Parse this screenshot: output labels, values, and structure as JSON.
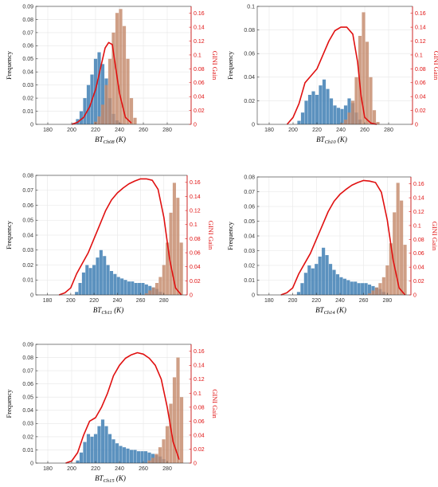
{
  "colors": {
    "blue": "#4a86b8",
    "orange": "#c58a6b",
    "overlap": "#7a6258",
    "gini": "#e01010",
    "grid": "#e6e6e6",
    "axis": "#333333"
  },
  "chart_data": [
    {
      "type": "bar",
      "ylabel": "Frequency",
      "y2label": "GINI Gain",
      "xlabel_main": "BT",
      "xlabel_sub": "Ch08",
      "xlabel_unit": " (K)",
      "xlim": [
        170,
        300
      ],
      "ylim": [
        0,
        0.09
      ],
      "y2lim": [
        0,
        0.17
      ],
      "xticks": [
        "180",
        "200",
        "220",
        "240",
        "260",
        "280"
      ],
      "yticks": [
        "0",
        "0.01",
        "0.02",
        "0.03",
        "0.04",
        "0.05",
        "0.06",
        "0.07",
        "0.08",
        "0.09"
      ],
      "y2ticks": [
        "0",
        "0.02",
        "0.04",
        "0.06",
        "0.08",
        "0.1",
        "0.12",
        "0.14",
        "0.16"
      ],
      "series": [
        {
          "role": "blue",
          "x": [
            202,
            205,
            208,
            211,
            214,
            217,
            220,
            223,
            226,
            229,
            232,
            235,
            238,
            241,
            244,
            247
          ],
          "values": [
            0.001,
            0.004,
            0.01,
            0.02,
            0.03,
            0.038,
            0.05,
            0.055,
            0.046,
            0.035,
            0.02,
            0.008,
            0.003,
            0.001,
            0.0,
            0.0
          ]
        },
        {
          "role": "orange",
          "x": [
            220,
            223,
            226,
            229,
            232,
            235,
            238,
            241,
            244,
            247,
            250,
            253
          ],
          "values": [
            0.002,
            0.006,
            0.015,
            0.03,
            0.05,
            0.07,
            0.085,
            0.088,
            0.075,
            0.05,
            0.02,
            0.005
          ]
        },
        {
          "role": "gini",
          "x": [
            200,
            205,
            210,
            215,
            220,
            224,
            228,
            231,
            234,
            237,
            240,
            245,
            250
          ],
          "values": [
            0.0,
            0.003,
            0.01,
            0.025,
            0.05,
            0.08,
            0.11,
            0.118,
            0.115,
            0.08,
            0.045,
            0.01,
            0.002
          ]
        }
      ]
    },
    {
      "type": "bar",
      "ylabel": "Frequency",
      "y2label": "GINI Gain",
      "xlabel_main": "BT",
      "xlabel_sub": "Ch10",
      "xlabel_unit": " (K)",
      "xlim": [
        170,
        300
      ],
      "ylim": [
        0,
        0.1
      ],
      "y2lim": [
        0,
        0.17
      ],
      "xticks": [
        "180",
        "200",
        "220",
        "240",
        "260",
        "280"
      ],
      "yticks": [
        "0",
        "0.02",
        "0.04",
        "0.06",
        "0.08",
        "0.1"
      ],
      "y2ticks": [
        "0",
        "0.02",
        "0.04",
        "0.06",
        "0.08",
        "0.1",
        "0.12",
        "0.14",
        "0.16"
      ],
      "series": [
        {
          "role": "blue",
          "x": [
            205,
            208,
            211,
            214,
            217,
            220,
            223,
            226,
            229,
            232,
            235,
            238,
            241,
            244,
            247,
            250,
            253,
            256
          ],
          "values": [
            0.003,
            0.01,
            0.02,
            0.025,
            0.028,
            0.025,
            0.033,
            0.038,
            0.03,
            0.022,
            0.016,
            0.014,
            0.013,
            0.016,
            0.022,
            0.018,
            0.01,
            0.004
          ]
        },
        {
          "role": "orange",
          "x": [
            241,
            244,
            247,
            250,
            253,
            256,
            259,
            262,
            265,
            268,
            271
          ],
          "values": [
            0.001,
            0.004,
            0.01,
            0.02,
            0.04,
            0.075,
            0.095,
            0.07,
            0.04,
            0.012,
            0.002
          ]
        },
        {
          "role": "gini",
          "x": [
            195,
            200,
            205,
            210,
            215,
            220,
            225,
            230,
            235,
            240,
            245,
            250,
            254,
            257,
            260,
            265,
            270
          ],
          "values": [
            0.0,
            0.01,
            0.03,
            0.06,
            0.07,
            0.08,
            0.1,
            0.12,
            0.135,
            0.14,
            0.14,
            0.13,
            0.09,
            0.04,
            0.01,
            0.002,
            0.0
          ]
        }
      ]
    },
    {
      "type": "bar",
      "ylabel": "Frequency",
      "y2label": "GINI Gain",
      "xlabel_main": "BT",
      "xlabel_sub": "Ch11",
      "xlabel_unit": " (K)",
      "xlim": [
        170,
        300
      ],
      "ylim": [
        0,
        0.08
      ],
      "y2lim": [
        0,
        0.17
      ],
      "xticks": [
        "180",
        "200",
        "220",
        "240",
        "260",
        "280"
      ],
      "yticks": [
        "0",
        "0.01",
        "0.02",
        "0.03",
        "0.04",
        "0.05",
        "0.06",
        "0.07",
        "0.08"
      ],
      "y2ticks": [
        "0",
        "0.02",
        "0.04",
        "0.06",
        "0.08",
        "0.1",
        "0.12",
        "0.14",
        "0.16"
      ],
      "series": [
        {
          "role": "blue",
          "x": [
            205,
            208,
            211,
            214,
            217,
            220,
            223,
            226,
            229,
            232,
            235,
            238,
            241,
            244,
            247,
            250,
            253,
            256,
            259,
            262,
            265,
            268,
            271,
            274,
            277
          ],
          "values": [
            0.002,
            0.008,
            0.015,
            0.02,
            0.018,
            0.02,
            0.025,
            0.03,
            0.026,
            0.02,
            0.016,
            0.014,
            0.012,
            0.011,
            0.01,
            0.009,
            0.009,
            0.008,
            0.008,
            0.008,
            0.007,
            0.006,
            0.005,
            0.004,
            0.002
          ]
        },
        {
          "role": "orange",
          "x": [
            265,
            268,
            271,
            274,
            277,
            280,
            283,
            286,
            289,
            292,
            295
          ],
          "values": [
            0.001,
            0.003,
            0.005,
            0.008,
            0.012,
            0.02,
            0.035,
            0.055,
            0.075,
            0.065,
            0.035
          ]
        },
        {
          "role": "gini",
          "x": [
            190,
            195,
            200,
            205,
            210,
            215,
            220,
            225,
            230,
            235,
            240,
            245,
            250,
            255,
            260,
            265,
            270,
            275,
            280,
            285,
            290,
            295
          ],
          "values": [
            0.0,
            0.003,
            0.01,
            0.03,
            0.045,
            0.06,
            0.08,
            0.1,
            0.12,
            0.135,
            0.145,
            0.152,
            0.158,
            0.162,
            0.165,
            0.165,
            0.163,
            0.15,
            0.11,
            0.05,
            0.01,
            0.0
          ]
        }
      ]
    },
    {
      "type": "bar",
      "ylabel": "Frequency",
      "y2label": "GINI Gain",
      "xlabel_main": "BT",
      "xlabel_sub": "Ch14",
      "xlabel_unit": " (K)",
      "xlim": [
        170,
        300
      ],
      "ylim": [
        0,
        0.08
      ],
      "y2lim": [
        0,
        0.17
      ],
      "xticks": [
        "180",
        "200",
        "220",
        "240",
        "260",
        "280"
      ],
      "yticks": [
        "0",
        "0.01",
        "0.02",
        "0.03",
        "0.04",
        "0.05",
        "0.06",
        "0.07",
        "0.08"
      ],
      "y2ticks": [
        "0",
        "0.02",
        "0.04",
        "0.06",
        "0.08",
        "0.1",
        "0.12",
        "0.14",
        "0.16"
      ],
      "series": [
        {
          "role": "blue",
          "x": [
            205,
            208,
            211,
            214,
            217,
            220,
            223,
            226,
            229,
            232,
            235,
            238,
            241,
            244,
            247,
            250,
            253,
            256,
            259,
            262,
            265,
            268,
            271,
            274,
            277
          ],
          "values": [
            0.002,
            0.008,
            0.015,
            0.02,
            0.018,
            0.021,
            0.026,
            0.032,
            0.027,
            0.021,
            0.017,
            0.014,
            0.012,
            0.011,
            0.01,
            0.009,
            0.009,
            0.008,
            0.008,
            0.008,
            0.007,
            0.006,
            0.005,
            0.004,
            0.002
          ]
        },
        {
          "role": "orange",
          "x": [
            265,
            268,
            271,
            274,
            277,
            280,
            283,
            286,
            289,
            292,
            295
          ],
          "values": [
            0.001,
            0.003,
            0.005,
            0.008,
            0.012,
            0.02,
            0.035,
            0.056,
            0.076,
            0.064,
            0.034
          ]
        },
        {
          "role": "gini",
          "x": [
            190,
            195,
            200,
            205,
            210,
            215,
            220,
            225,
            230,
            235,
            240,
            245,
            250,
            255,
            260,
            265,
            270,
            275,
            280,
            285,
            290,
            295
          ],
          "values": [
            0.0,
            0.003,
            0.01,
            0.03,
            0.045,
            0.06,
            0.08,
            0.1,
            0.12,
            0.135,
            0.145,
            0.152,
            0.158,
            0.162,
            0.165,
            0.164,
            0.162,
            0.148,
            0.108,
            0.05,
            0.01,
            0.0
          ]
        }
      ]
    },
    {
      "type": "bar",
      "ylabel": "Frequency",
      "y2label": "GINI Gain",
      "xlabel_main": "BT",
      "xlabel_sub": "Ch15",
      "xlabel_unit": " (K)",
      "xlim": [
        170,
        300
      ],
      "ylim": [
        0,
        0.09
      ],
      "y2lim": [
        0,
        0.17
      ],
      "xticks": [
        "180",
        "200",
        "220",
        "240",
        "260",
        "280"
      ],
      "yticks": [
        "0",
        "0.01",
        "0.02",
        "0.03",
        "0.04",
        "0.05",
        "0.06",
        "0.07",
        "0.08",
        "0.09"
      ],
      "y2ticks": [
        "0",
        "0.02",
        "0.04",
        "0.06",
        "0.08",
        "0.1",
        "0.12",
        "0.14",
        "0.16"
      ],
      "series": [
        {
          "role": "blue",
          "x": [
            205,
            208,
            211,
            214,
            217,
            220,
            223,
            226,
            229,
            232,
            235,
            238,
            241,
            244,
            247,
            250,
            253,
            256,
            259,
            262,
            265,
            268,
            271,
            274,
            277
          ],
          "values": [
            0.002,
            0.008,
            0.016,
            0.022,
            0.02,
            0.022,
            0.028,
            0.033,
            0.028,
            0.022,
            0.018,
            0.015,
            0.013,
            0.012,
            0.011,
            0.01,
            0.01,
            0.009,
            0.009,
            0.009,
            0.008,
            0.007,
            0.006,
            0.005,
            0.003
          ]
        },
        {
          "role": "orange",
          "x": [
            265,
            268,
            271,
            274,
            277,
            280,
            283,
            286,
            289,
            292
          ],
          "values": [
            0.002,
            0.004,
            0.007,
            0.012,
            0.018,
            0.028,
            0.045,
            0.065,
            0.08,
            0.05
          ]
        },
        {
          "role": "gini",
          "x": [
            195,
            200,
            205,
            210,
            215,
            220,
            225,
            230,
            235,
            240,
            245,
            250,
            255,
            260,
            265,
            270,
            275,
            280,
            285,
            290
          ],
          "values": [
            0.0,
            0.003,
            0.015,
            0.04,
            0.06,
            0.065,
            0.08,
            0.1,
            0.125,
            0.14,
            0.15,
            0.155,
            0.158,
            0.156,
            0.15,
            0.14,
            0.12,
            0.08,
            0.03,
            0.005
          ]
        }
      ]
    }
  ]
}
